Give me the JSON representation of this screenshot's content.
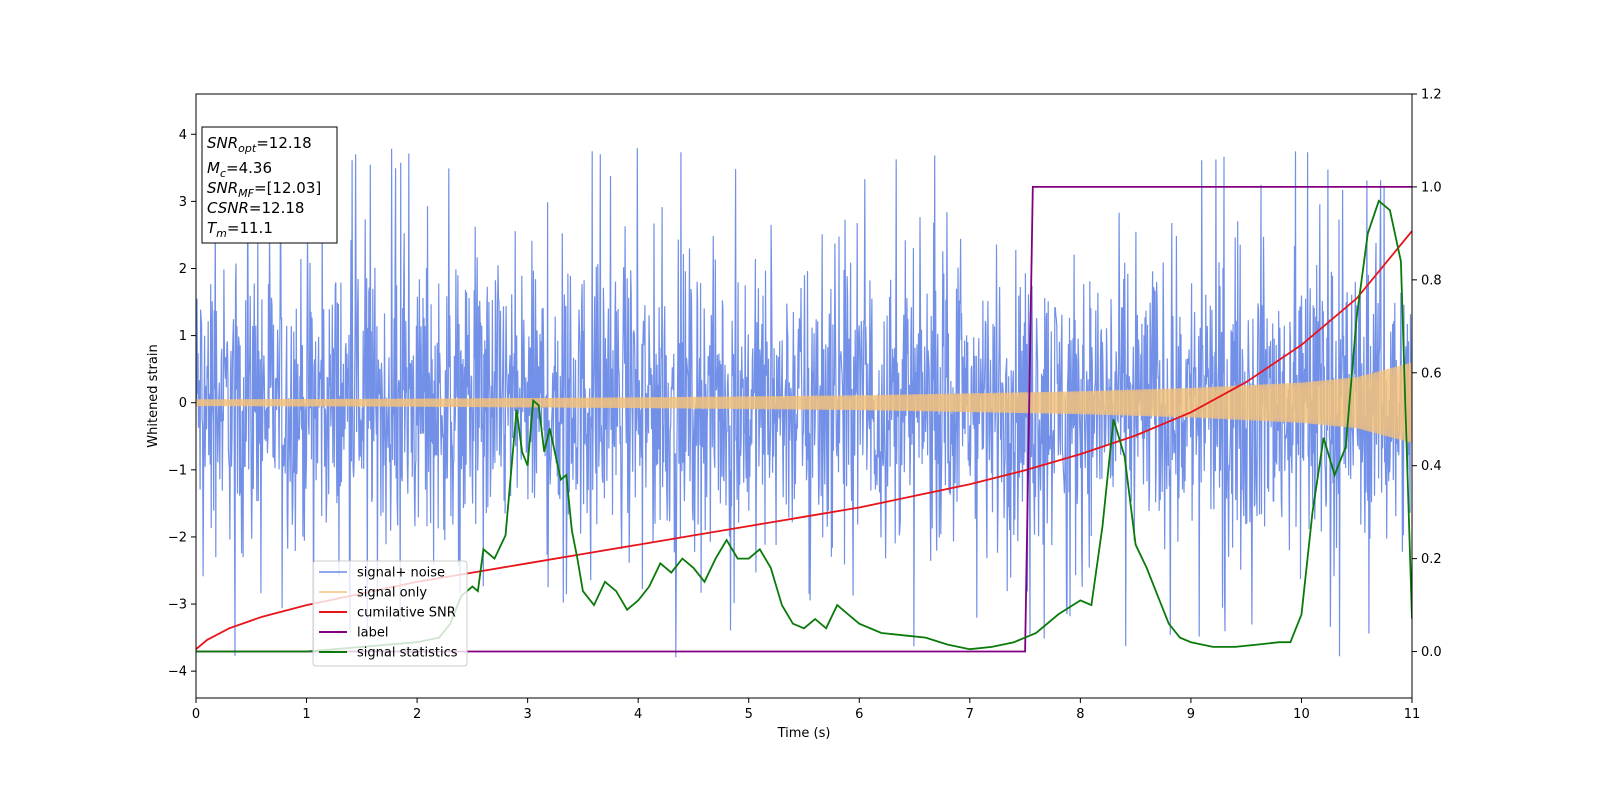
{
  "chart_data": {
    "type": "line",
    "xlabel": "Time (s)",
    "ylabel": "Whitened strain",
    "xlim": [
      0,
      11
    ],
    "ylim": [
      -4.4,
      4.6
    ],
    "ylim_right": [
      -0.1,
      1.2
    ],
    "x_ticks": [
      0,
      1,
      2,
      3,
      4,
      5,
      6,
      7,
      8,
      9,
      10,
      11
    ],
    "y_ticks": [
      -4,
      -3,
      -2,
      -1,
      0,
      1,
      2,
      3,
      4
    ],
    "y_right_ticks": [
      "0.0",
      "0.2",
      "0.4",
      "0.6",
      "0.8",
      "1.0",
      "1.2"
    ],
    "grid": false,
    "legend_position": "lower-left",
    "colors": {
      "signal_noise": "#6a8ae6",
      "signal_only": "#f5c27a",
      "cumulative_snr": "#e8141a",
      "label": "#800080",
      "signal_statistics": "#0a7a0a"
    },
    "series": [
      {
        "name": "signal+ noise",
        "axis": "left",
        "description_values": "noise band roughly within [-2.7, 2.7] with spikes up to about +4.2 and down to about -3.9",
        "band": [
          -2.7,
          2.7
        ]
      },
      {
        "name": "signal only",
        "axis": "left",
        "amplitude_points": [
          [
            0,
            0.05
          ],
          [
            2,
            0.06
          ],
          [
            4,
            0.08
          ],
          [
            6,
            0.11
          ],
          [
            8,
            0.17
          ],
          [
            9,
            0.22
          ],
          [
            10,
            0.3
          ],
          [
            10.5,
            0.38
          ],
          [
            11,
            0.6
          ]
        ]
      },
      {
        "name": "cumilative SNR",
        "axis": "right",
        "x": [
          0,
          0.1,
          0.3,
          0.6,
          1,
          1.5,
          2,
          2.5,
          3,
          3.5,
          4,
          4.5,
          5,
          5.5,
          6,
          6.5,
          7,
          7.5,
          8,
          8.5,
          9,
          9.5,
          10,
          10.5,
          11
        ],
        "y": [
          0.005,
          0.025,
          0.05,
          0.075,
          0.1,
          0.125,
          0.15,
          0.17,
          0.19,
          0.21,
          0.23,
          0.25,
          0.27,
          0.29,
          0.31,
          0.335,
          0.36,
          0.39,
          0.425,
          0.465,
          0.515,
          0.58,
          0.66,
          0.76,
          0.905
        ]
      },
      {
        "name": "label",
        "axis": "right",
        "x": [
          0,
          7.5,
          7.57,
          11
        ],
        "y": [
          0.0,
          0.0,
          1.0,
          1.0
        ]
      },
      {
        "name": "signal statistics",
        "axis": "right",
        "x": [
          0,
          0.5,
          1,
          1.5,
          2,
          2.2,
          2.3,
          2.4,
          2.5,
          2.55,
          2.6,
          2.7,
          2.8,
          2.9,
          2.95,
          3.0,
          3.05,
          3.1,
          3.15,
          3.2,
          3.3,
          3.35,
          3.4,
          3.45,
          3.5,
          3.6,
          3.7,
          3.8,
          3.9,
          4.0,
          4.1,
          4.2,
          4.3,
          4.4,
          4.5,
          4.6,
          4.7,
          4.8,
          4.9,
          5.0,
          5.1,
          5.2,
          5.3,
          5.4,
          5.5,
          5.6,
          5.7,
          5.8,
          5.9,
          6.0,
          6.2,
          6.4,
          6.6,
          6.8,
          7.0,
          7.2,
          7.4,
          7.5,
          7.6,
          7.8,
          8.0,
          8.1,
          8.2,
          8.3,
          8.4,
          8.5,
          8.6,
          8.7,
          8.8,
          8.9,
          9.0,
          9.2,
          9.4,
          9.6,
          9.8,
          9.9,
          10.0,
          10.1,
          10.2,
          10.3,
          10.4,
          10.5,
          10.6,
          10.7,
          10.8,
          10.9,
          11.0
        ],
        "y": [
          0.0,
          0.0,
          0.0,
          0.01,
          0.02,
          0.03,
          0.06,
          0.12,
          0.14,
          0.13,
          0.22,
          0.2,
          0.25,
          0.52,
          0.43,
          0.4,
          0.54,
          0.53,
          0.43,
          0.48,
          0.37,
          0.38,
          0.26,
          0.2,
          0.13,
          0.1,
          0.15,
          0.13,
          0.09,
          0.11,
          0.14,
          0.19,
          0.17,
          0.2,
          0.18,
          0.15,
          0.2,
          0.24,
          0.2,
          0.2,
          0.22,
          0.18,
          0.1,
          0.06,
          0.05,
          0.07,
          0.05,
          0.1,
          0.08,
          0.06,
          0.04,
          0.035,
          0.03,
          0.015,
          0.005,
          0.01,
          0.02,
          0.03,
          0.04,
          0.08,
          0.11,
          0.1,
          0.27,
          0.5,
          0.42,
          0.23,
          0.18,
          0.12,
          0.06,
          0.03,
          0.02,
          0.01,
          0.01,
          0.015,
          0.02,
          0.02,
          0.08,
          0.3,
          0.46,
          0.38,
          0.44,
          0.72,
          0.9,
          0.97,
          0.95,
          0.84,
          0.07
        ]
      }
    ],
    "info_box": [
      {
        "main": "SNR",
        "sub": "opt",
        "value": "=12.18"
      },
      {
        "main": "M",
        "sub": "c",
        "value": "=4.36"
      },
      {
        "main": "SNR",
        "sub": "MF",
        "value": "=[12.03]"
      },
      {
        "main": "CSNR",
        "sub": "",
        "value": "=12.18"
      },
      {
        "main": "T",
        "sub": "m",
        "value": "=11.1"
      }
    ]
  }
}
